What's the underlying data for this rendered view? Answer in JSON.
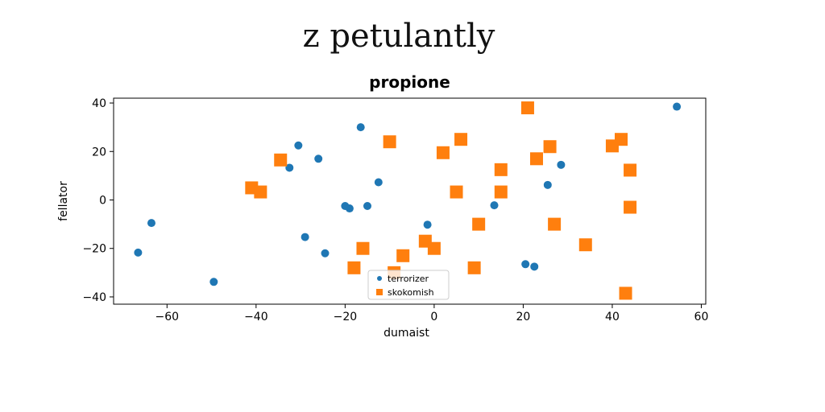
{
  "page_title": "z petulantly",
  "chart_data": {
    "type": "scatter",
    "title": "propione",
    "xlabel": "dumaist",
    "ylabel": "fellator",
    "xlim": [
      -72,
      61
    ],
    "ylim": [
      -43,
      42
    ],
    "x_ticks": [
      -60,
      -40,
      -20,
      0,
      20,
      40,
      60
    ],
    "y_ticks": [
      -40,
      -20,
      0,
      20,
      40
    ],
    "x_tick_labels": [
      "−60",
      "−40",
      "−20",
      "0",
      "20",
      "40",
      "60"
    ],
    "y_tick_labels": [
      "−40",
      "−20",
      "0",
      "20",
      "40"
    ],
    "grid": false,
    "legend_position": "lower-center",
    "series": [
      {
        "name": "terrorizer",
        "marker": "circle",
        "color": "#1f77b4",
        "points": [
          {
            "x": -66.5,
            "y": -21.7
          },
          {
            "x": -63.5,
            "y": -9.5
          },
          {
            "x": -49.5,
            "y": -33.8
          },
          {
            "x": -32.5,
            "y": 13.3
          },
          {
            "x": -30.5,
            "y": 22.5
          },
          {
            "x": -29.0,
            "y": -15.3
          },
          {
            "x": -26.0,
            "y": 17.0
          },
          {
            "x": -24.5,
            "y": -22.0
          },
          {
            "x": -20.0,
            "y": -2.5
          },
          {
            "x": -19.0,
            "y": -3.5
          },
          {
            "x": -16.5,
            "y": 30.0
          },
          {
            "x": -15.0,
            "y": -2.5
          },
          {
            "x": -12.5,
            "y": 7.3
          },
          {
            "x": -1.5,
            "y": -10.2
          },
          {
            "x": 13.5,
            "y": -2.2
          },
          {
            "x": 20.5,
            "y": -26.5
          },
          {
            "x": 22.5,
            "y": -27.5
          },
          {
            "x": 25.5,
            "y": 6.2
          },
          {
            "x": 28.5,
            "y": 14.5
          },
          {
            "x": 54.5,
            "y": 38.5
          }
        ]
      },
      {
        "name": "skokomish",
        "marker": "square",
        "color": "#ff7f0e",
        "points": [
          {
            "x": -41.0,
            "y": 5.0
          },
          {
            "x": -39.0,
            "y": 3.3
          },
          {
            "x": -34.5,
            "y": 16.5
          },
          {
            "x": -18.0,
            "y": -28.0
          },
          {
            "x": -16.0,
            "y": -20.0
          },
          {
            "x": -10.0,
            "y": 24.0
          },
          {
            "x": -9.0,
            "y": -30.0
          },
          {
            "x": -7.0,
            "y": -23.0
          },
          {
            "x": -2.0,
            "y": -17.0
          },
          {
            "x": 0.0,
            "y": -20.0
          },
          {
            "x": 2.0,
            "y": 19.5
          },
          {
            "x": 5.0,
            "y": 3.3
          },
          {
            "x": 6.0,
            "y": 25.0
          },
          {
            "x": 9.0,
            "y": -28.0
          },
          {
            "x": 10.0,
            "y": -10.0
          },
          {
            "x": 15.0,
            "y": 12.5
          },
          {
            "x": 15.0,
            "y": 3.3
          },
          {
            "x": 21.0,
            "y": 38.0
          },
          {
            "x": 23.0,
            "y": 17.0
          },
          {
            "x": 26.0,
            "y": 22.0
          },
          {
            "x": 27.0,
            "y": -10.0
          },
          {
            "x": 34.0,
            "y": -18.5
          },
          {
            "x": 40.0,
            "y": 22.3
          },
          {
            "x": 42.0,
            "y": 25.0
          },
          {
            "x": 43.0,
            "y": -38.5
          },
          {
            "x": 44.0,
            "y": -3.0
          },
          {
            "x": 44.0,
            "y": 12.3
          }
        ]
      }
    ]
  }
}
